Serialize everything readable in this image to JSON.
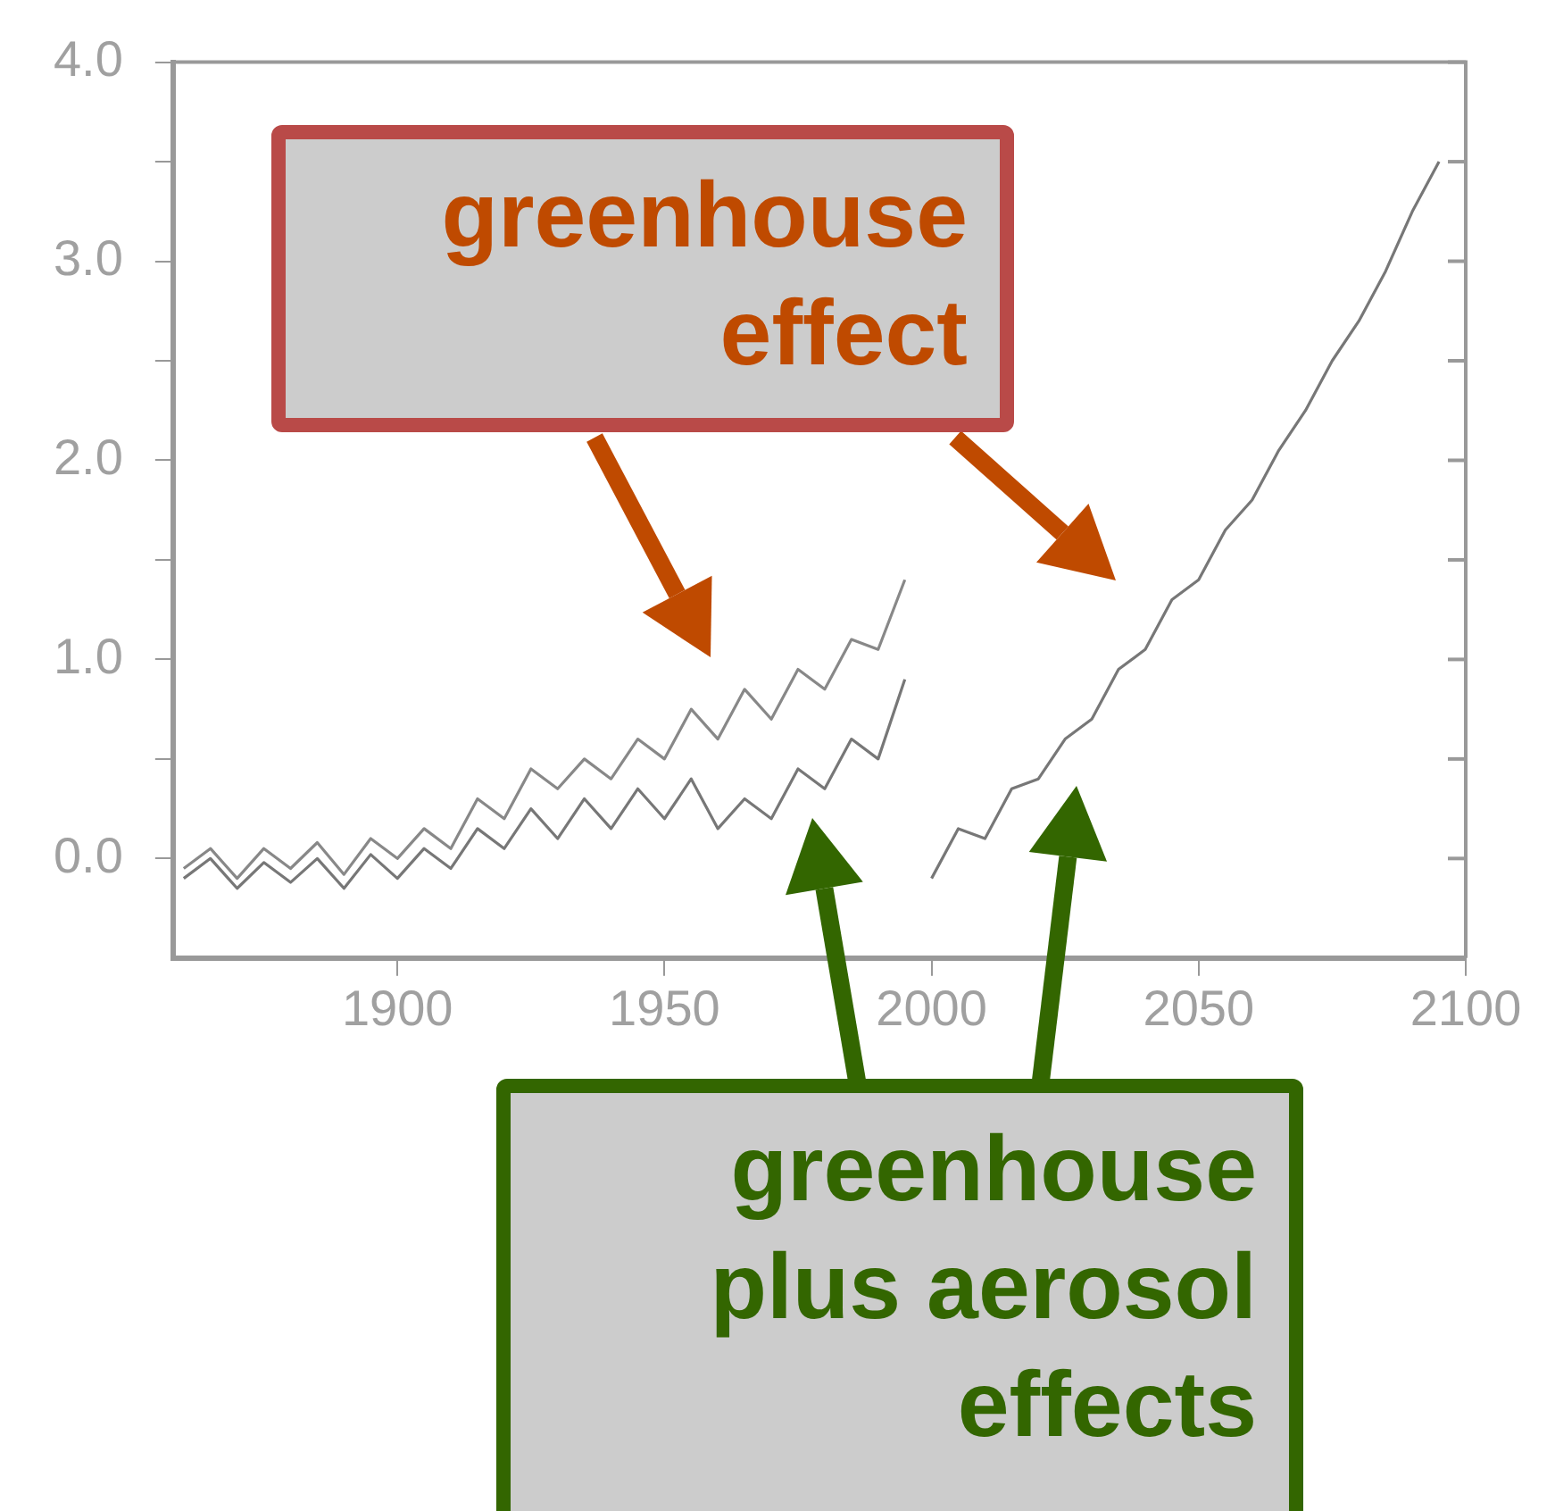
{
  "chart_data": {
    "type": "line",
    "xlim": [
      1858,
      2100
    ],
    "ylim": [
      -0.5,
      4.0
    ],
    "xticks": [
      1900,
      1950,
      2000,
      2050,
      2100
    ],
    "yticks": [
      {
        "value": 0,
        "label": "0.0"
      },
      {
        "value": 0.5,
        "label": null
      },
      {
        "value": 1,
        "label": "1.0"
      },
      {
        "value": 1.5,
        "label": null
      },
      {
        "value": 2,
        "label": "2.0"
      },
      {
        "value": 2.5,
        "label": null
      },
      {
        "value": 3,
        "label": "3.0"
      },
      {
        "value": 3.5,
        "label": null
      },
      {
        "value": 4,
        "label": "4.0"
      }
    ],
    "grid": false,
    "legend": false,
    "marker": "none",
    "line_style": "solid",
    "series": [
      {
        "color": "#888888",
        "x": [
          1860,
          1865,
          1870,
          1875,
          1880,
          1885,
          1890,
          1895,
          1900,
          1905,
          1910,
          1915,
          1920,
          1925,
          1930,
          1935,
          1940,
          1945,
          1950,
          1955,
          1960,
          1965,
          1970,
          1975,
          1980,
          1985,
          1990,
          1995
        ],
        "values": [
          -0.05,
          0.05,
          -0.1,
          0.05,
          -0.05,
          0.08,
          -0.08,
          0.1,
          0.0,
          0.15,
          0.05,
          0.3,
          0.2,
          0.45,
          0.35,
          0.5,
          0.4,
          0.6,
          0.5,
          0.75,
          0.6,
          0.85,
          0.7,
          0.95,
          0.85,
          1.1,
          1.05,
          1.4
        ]
      },
      {
        "color": "#777777",
        "x": [
          1860,
          1865,
          1870,
          1875,
          1880,
          1885,
          1890,
          1895,
          1900,
          1905,
          1910,
          1915,
          1920,
          1925,
          1930,
          1935,
          1940,
          1945,
          1950,
          1955,
          1960,
          1965,
          1970,
          1975,
          1980,
          1985,
          1990,
          1995
        ],
        "values": [
          -0.1,
          0.0,
          -0.15,
          -0.02,
          -0.12,
          0.0,
          -0.15,
          0.02,
          -0.1,
          0.05,
          -0.05,
          0.15,
          0.05,
          0.25,
          0.1,
          0.3,
          0.15,
          0.35,
          0.2,
          0.4,
          0.15,
          0.3,
          0.2,
          0.45,
          0.35,
          0.6,
          0.5,
          0.9
        ]
      },
      {
        "color": "#777777",
        "x": [
          2000,
          2005,
          2010,
          2015,
          2020,
          2025,
          2030,
          2035,
          2040,
          2045,
          2050,
          2055,
          2060,
          2065,
          2070,
          2075,
          2080,
          2085,
          2090,
          2095
        ],
        "values": [
          -0.1,
          0.15,
          0.1,
          0.35,
          0.4,
          0.6,
          0.7,
          0.95,
          1.05,
          1.3,
          1.4,
          1.65,
          1.8,
          2.05,
          2.25,
          2.5,
          2.7,
          2.95,
          3.25,
          3.5
        ]
      }
    ],
    "annotations": [
      "greenhouse effect",
      "greenhouse plus aerosol effects"
    ]
  }
}
